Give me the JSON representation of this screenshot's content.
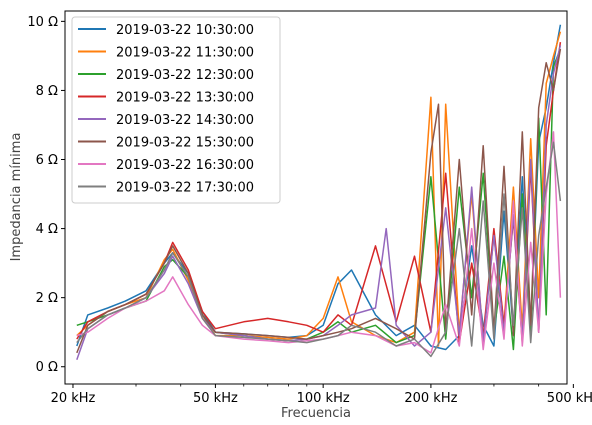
{
  "chart_data": {
    "type": "line",
    "xlabel": "Frecuencia",
    "ylabel": "Impedancia mínima",
    "xscale": "log",
    "xlim": [
      19000,
      480000
    ],
    "ylim": [
      -0.5,
      10.3
    ],
    "x_ticks": [
      {
        "value": 20000,
        "label": "20 kHz"
      },
      {
        "value": 50000,
        "label": "50 kHz"
      },
      {
        "value": 100000,
        "label": "100 kHz"
      },
      {
        "value": 200000,
        "label": "200 kHz"
      },
      {
        "value": 500000,
        "label": "500 kHz"
      }
    ],
    "y_ticks": [
      {
        "value": 0,
        "label": "0 Ω"
      },
      {
        "value": 2,
        "label": "2 Ω"
      },
      {
        "value": 4,
        "label": "4 Ω"
      },
      {
        "value": 6,
        "label": "6 Ω"
      },
      {
        "value": 8,
        "label": "8 Ω"
      },
      {
        "value": 10,
        "label": "10 Ω"
      }
    ],
    "legend_position": "top-left",
    "grid": false,
    "series": [
      {
        "name": "2019-03-22 10:30:00",
        "color": "#1f77b4",
        "x": [
          20500,
          22000,
          25000,
          28000,
          32000,
          36000,
          38000,
          42000,
          46000,
          50000,
          60000,
          70000,
          80000,
          90000,
          100000,
          110000,
          120000,
          140000,
          160000,
          180000,
          200000,
          220000,
          240000,
          260000,
          280000,
          300000,
          320000,
          340000,
          360000,
          380000,
          400000,
          420000,
          440000,
          460000
        ],
        "y": [
          0.6,
          1.5,
          1.7,
          1.9,
          2.2,
          3.0,
          3.3,
          2.7,
          1.6,
          1.0,
          0.95,
          0.9,
          0.85,
          0.9,
          1.2,
          2.4,
          2.8,
          1.5,
          0.9,
          1.2,
          0.6,
          0.5,
          0.9,
          3.5,
          1.2,
          0.6,
          4.5,
          1.0,
          5.5,
          1.2,
          6.5,
          7.5,
          8.8,
          9.9
        ]
      },
      {
        "name": "2019-03-22 11:30:00",
        "color": "#ff7f0e",
        "x": [
          20500,
          22000,
          25000,
          28000,
          32000,
          36000,
          38000,
          42000,
          46000,
          50000,
          60000,
          70000,
          80000,
          90000,
          100000,
          110000,
          120000,
          140000,
          160000,
          180000,
          200000,
          210000,
          220000,
          240000,
          260000,
          280000,
          300000,
          320000,
          340000,
          360000,
          380000,
          400000,
          420000,
          440000,
          460000
        ],
        "y": [
          0.9,
          1.2,
          1.6,
          1.8,
          2.0,
          3.1,
          3.4,
          2.5,
          1.5,
          0.9,
          0.9,
          0.85,
          0.8,
          0.9,
          1.4,
          2.6,
          1.3,
          0.9,
          0.7,
          1.0,
          7.8,
          0.6,
          7.6,
          1.0,
          5.0,
          0.8,
          3.8,
          1.2,
          5.2,
          1.1,
          6.6,
          2.0,
          8.2,
          9.0,
          9.7
        ]
      },
      {
        "name": "2019-03-22 12:30:00",
        "color": "#2ca02c",
        "x": [
          20500,
          22000,
          25000,
          28000,
          32000,
          36000,
          38000,
          42000,
          46000,
          50000,
          60000,
          70000,
          80000,
          90000,
          100000,
          110000,
          120000,
          140000,
          160000,
          180000,
          200000,
          220000,
          240000,
          260000,
          280000,
          300000,
          320000,
          340000,
          360000,
          380000,
          400000,
          420000,
          440000,
          460000
        ],
        "y": [
          1.2,
          1.3,
          1.5,
          1.7,
          1.9,
          2.9,
          3.1,
          2.6,
          1.5,
          1.0,
          0.9,
          0.8,
          0.75,
          0.8,
          1.0,
          1.3,
          1.0,
          1.2,
          0.7,
          0.9,
          5.5,
          0.8,
          5.2,
          2.0,
          5.6,
          1.0,
          3.2,
          0.5,
          5.0,
          0.9,
          7.2,
          1.5,
          8.7,
          9.2
        ]
      },
      {
        "name": "2019-03-22 13:30:00",
        "color": "#d62728",
        "x": [
          20500,
          22000,
          25000,
          28000,
          32000,
          36000,
          38000,
          42000,
          46000,
          50000,
          60000,
          70000,
          80000,
          90000,
          100000,
          110000,
          120000,
          140000,
          160000,
          180000,
          200000,
          220000,
          240000,
          260000,
          280000,
          300000,
          320000,
          340000,
          360000,
          380000,
          400000,
          420000,
          440000,
          460000
        ],
        "y": [
          0.8,
          1.3,
          1.6,
          1.8,
          2.1,
          3.0,
          3.6,
          2.8,
          1.6,
          1.1,
          1.3,
          1.4,
          1.3,
          1.2,
          1.0,
          1.5,
          1.2,
          3.5,
          1.3,
          3.2,
          1.0,
          5.6,
          0.7,
          3.0,
          0.9,
          4.0,
          1.2,
          4.3,
          0.7,
          5.8,
          1.0,
          6.4,
          8.0,
          9.4
        ]
      },
      {
        "name": "2019-03-22 14:30:00",
        "color": "#9467bd",
        "x": [
          20500,
          22000,
          25000,
          28000,
          32000,
          36000,
          38000,
          42000,
          46000,
          50000,
          60000,
          70000,
          80000,
          90000,
          100000,
          110000,
          120000,
          140000,
          150000,
          160000,
          180000,
          200000,
          220000,
          240000,
          260000,
          280000,
          300000,
          320000,
          340000,
          360000,
          380000,
          400000,
          420000,
          440000,
          460000
        ],
        "y": [
          0.2,
          1.1,
          1.5,
          1.7,
          2.0,
          2.7,
          3.2,
          2.4,
          1.4,
          1.0,
          0.9,
          0.8,
          0.75,
          0.8,
          0.9,
          1.2,
          1.5,
          1.7,
          4.0,
          1.2,
          0.6,
          1.0,
          4.6,
          0.9,
          5.2,
          0.7,
          3.8,
          1.0,
          4.4,
          0.8,
          6.0,
          1.0,
          7.0,
          8.5,
          9.3
        ]
      },
      {
        "name": "2019-03-22 15:30:00",
        "color": "#8c564b",
        "x": [
          20500,
          22000,
          25000,
          28000,
          32000,
          36000,
          38000,
          42000,
          46000,
          50000,
          60000,
          70000,
          80000,
          90000,
          100000,
          110000,
          120000,
          140000,
          160000,
          180000,
          200000,
          210000,
          220000,
          240000,
          260000,
          280000,
          300000,
          320000,
          340000,
          360000,
          380000,
          400000,
          420000,
          440000,
          460000
        ],
        "y": [
          0.4,
          1.2,
          1.6,
          1.8,
          2.1,
          3.0,
          3.5,
          2.7,
          1.5,
          1.0,
          0.95,
          0.9,
          0.85,
          0.8,
          0.9,
          1.0,
          1.1,
          1.4,
          1.1,
          0.8,
          6.2,
          7.6,
          1.0,
          6.0,
          1.5,
          6.4,
          1.0,
          5.8,
          0.9,
          6.8,
          1.2,
          7.5,
          8.8,
          8.0,
          9.2
        ]
      },
      {
        "name": "2019-03-22 16:30:00",
        "color": "#e377c2",
        "x": [
          20500,
          22000,
          25000,
          28000,
          32000,
          36000,
          38000,
          42000,
          46000,
          50000,
          60000,
          70000,
          80000,
          90000,
          100000,
          110000,
          120000,
          140000,
          160000,
          180000,
          200000,
          220000,
          240000,
          260000,
          280000,
          300000,
          320000,
          340000,
          360000,
          380000,
          400000,
          420000,
          440000,
          460000
        ],
        "y": [
          0.9,
          1.0,
          1.4,
          1.7,
          1.9,
          2.2,
          2.6,
          1.8,
          1.2,
          0.9,
          0.8,
          0.75,
          0.7,
          0.75,
          0.8,
          0.9,
          1.0,
          0.9,
          0.6,
          0.7,
          0.4,
          1.8,
          0.6,
          4.0,
          0.5,
          3.0,
          0.8,
          4.8,
          0.6,
          3.6,
          1.0,
          5.0,
          6.8,
          2.0
        ]
      },
      {
        "name": "2019-03-22 17:30:00",
        "color": "#7f7f7f",
        "x": [
          20500,
          22000,
          25000,
          28000,
          32000,
          36000,
          38000,
          42000,
          46000,
          50000,
          60000,
          70000,
          80000,
          90000,
          100000,
          110000,
          120000,
          140000,
          160000,
          180000,
          200000,
          220000,
          240000,
          260000,
          280000,
          300000,
          320000,
          340000,
          360000,
          380000,
          400000,
          420000,
          440000,
          460000
        ],
        "y": [
          0.7,
          1.1,
          1.5,
          1.7,
          2.0,
          2.8,
          3.3,
          2.6,
          1.4,
          0.9,
          0.85,
          0.8,
          0.75,
          0.7,
          0.8,
          0.9,
          1.2,
          1.0,
          0.6,
          0.8,
          0.3,
          1.0,
          4.0,
          0.6,
          4.8,
          0.8,
          5.0,
          1.2,
          4.6,
          0.7,
          3.8,
          5.2,
          6.5,
          4.8
        ]
      }
    ]
  }
}
